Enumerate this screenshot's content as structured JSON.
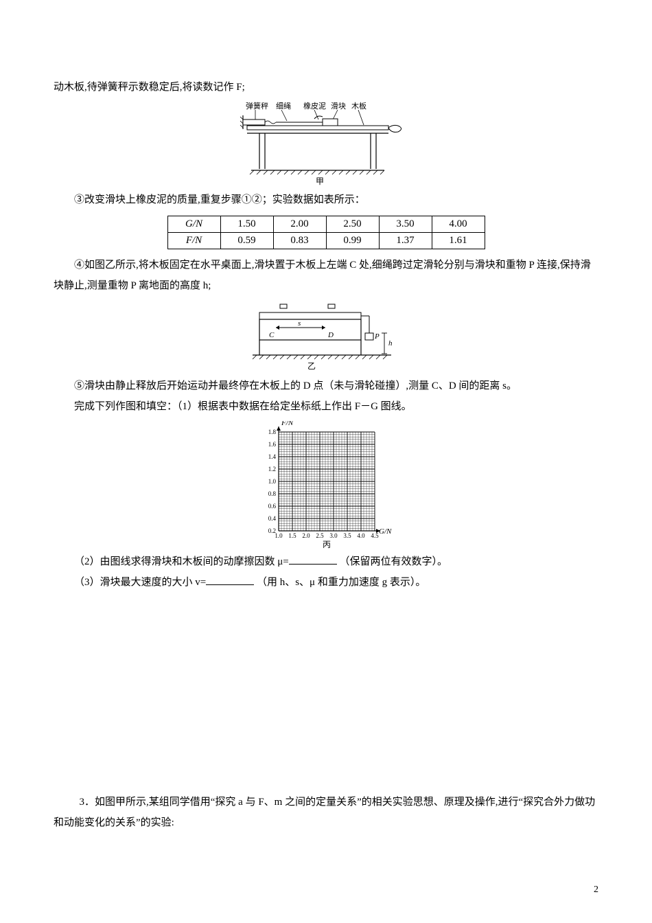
{
  "text": {
    "line_top": "动木板,待弹簧秤示数稳定后,将读数记作 F;",
    "fig_jia_labels": {
      "spring": "弹簧秤",
      "string": "细绳",
      "clay": "橡皮泥",
      "block": "滑块",
      "board": "木板",
      "caption": "甲"
    },
    "step3": "③改变滑块上橡皮泥的质量,重复步骤①②；实验数据如表所示：",
    "table": {
      "row1_label": "G/N",
      "row2_label": "F/N",
      "g_values": [
        "1.50",
        "2.00",
        "2.50",
        "3.50",
        "4.00"
      ],
      "f_values": [
        "0.59",
        "0.83",
        "0.99",
        "1.37",
        "1.61"
      ]
    },
    "step4": "④如图乙所示,将木板固定在水平桌面上,滑块置于木板上左端 C 处,细绳跨过定滑轮分别与滑块和重物 P 连接,保持滑块静止,测量重物 P 离地面的高度 h;",
    "fig_yi_labels": {
      "C": "C",
      "s": "s",
      "D": "D",
      "P": "P",
      "h": "h",
      "caption": "乙"
    },
    "step5": "⑤滑块由静止释放后开始运动并最终停在木板上的 D 点（未与滑轮碰撞）,测量 C、D 间的距离 s。",
    "task_intro": "完成下列作图和填空：（1）根据表中数据在给定坐标纸上作出 F－G 图线。",
    "graph": {
      "y_label": "F/N",
      "x_label": "G/N",
      "y_ticks": [
        "0.2",
        "0.4",
        "0.6",
        "0.8",
        "1.0",
        "1.2",
        "1.4",
        "1.6",
        "1.8"
      ],
      "x_ticks": [
        "1.0",
        "1.5",
        "2.0",
        "2.5",
        "3.0",
        "3.5",
        "4.0",
        "4.5"
      ],
      "caption": "丙",
      "grid_color": "#000000",
      "minor_per_major": 5,
      "axis_fontsize": 9
    },
    "q2_a": "（2）由图线求得滑块和木板间的动摩擦因数 μ=",
    "q2_b": "（保留两位有效数字）。",
    "q3_a": "（3）滑块最大速度的大小 v=",
    "q3_b": "（用 h、s、μ 和重力加速度 g 表示）。",
    "q_next": "3．如图甲所示,某组同学借用“探究 a 与 F、m 之间的定量关系”的相关实验思想、原理及操作,进行“探究合外力做功和动能变化的关系”的实验:"
  },
  "page_number": "2",
  "colors": {
    "text": "#000000",
    "bg": "#ffffff"
  }
}
